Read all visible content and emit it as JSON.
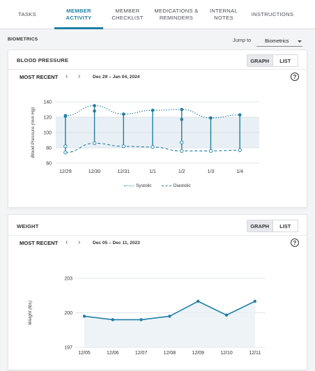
{
  "tabs": [
    {
      "line1": "TASKS",
      "line2": ""
    },
    {
      "line1": "MEMBER",
      "line2": "ACTIVITY"
    },
    {
      "line1": "MEMBER",
      "line2": "CHECKLIST"
    },
    {
      "line1": "MEDICATIONS &",
      "line2": "REMINDERS"
    },
    {
      "line1": "INTERNAL",
      "line2": "NOTES"
    },
    {
      "line1": "INSTRUCTIONS",
      "line2": ""
    }
  ],
  "active_tab": 1,
  "section": {
    "title": "BIOMETRICS",
    "jump_label": "Jump to",
    "jump_value": "Biometrics"
  },
  "colors": {
    "accent": "#1f7fa6",
    "band": "#e9f0f5"
  },
  "blood_pressure": {
    "title": "BLOOD PRESSURE",
    "toggle": {
      "graph": "GRAPH",
      "list": "LIST"
    },
    "most_recent": "MOST RECENT",
    "date_range": "Dec 29 – Jan 04, 2024",
    "help": "?",
    "legend": {
      "systolic": "Systolic",
      "diastolic": "Diastolic"
    }
  },
  "weight": {
    "title": "WEIGHT",
    "toggle": {
      "graph": "GRAPH",
      "list": "LIST"
    },
    "most_recent": "MOST RECENT",
    "date_range": "Dec 05 – Dec 11, 2023",
    "help": "?"
  },
  "chart_data": [
    {
      "type": "line",
      "title": "Blood Pressure",
      "ylabel": "Blood Pressure (mm Hg)",
      "xlabel": "",
      "ylim": [
        60,
        140
      ],
      "yticks": [
        60,
        80,
        100,
        120,
        140
      ],
      "categories": [
        "12/29",
        "12/30",
        "12/31",
        "1/1",
        "1/2",
        "1/3",
        "1/4"
      ],
      "normal_band": [
        80,
        120
      ],
      "series": [
        {
          "name": "Systolic",
          "values": [
            122,
            135,
            124,
            129,
            130,
            119,
            123
          ],
          "extra": [
            [
              0,
              121
            ],
            [
              1,
              128
            ],
            [
              4,
              117
            ]
          ]
        },
        {
          "name": "Diastolic",
          "values": [
            74,
            86,
            82,
            81,
            76,
            76,
            77
          ],
          "extra": [
            [
              0,
              82
            ],
            [
              4,
              87
            ]
          ]
        }
      ]
    },
    {
      "type": "area",
      "title": "Weight",
      "ylabel": "Weight (lbs)",
      "xlabel": "",
      "ylim": [
        197,
        203
      ],
      "yticks": [
        197,
        200,
        203
      ],
      "categories": [
        "12/05",
        "12/06",
        "12/07",
        "12/08",
        "12/09",
        "12/10",
        "12/11"
      ],
      "series": [
        {
          "name": "Weight",
          "values": [
            199.7,
            199.4,
            199.4,
            199.7,
            201.0,
            199.8,
            201.0
          ]
        }
      ]
    }
  ]
}
